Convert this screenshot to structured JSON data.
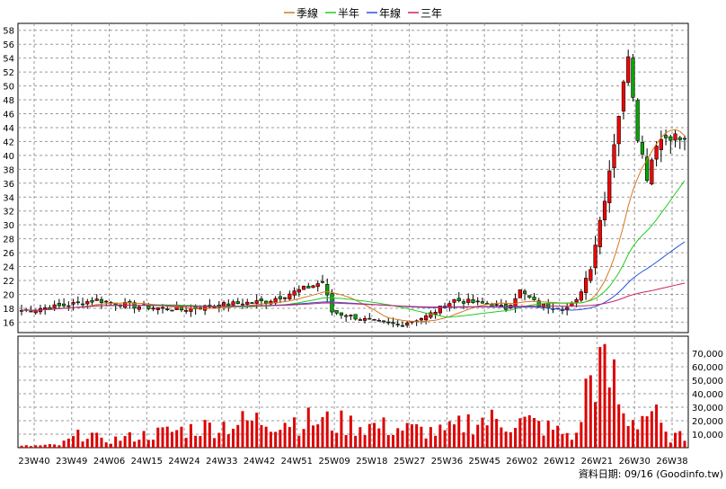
{
  "chart_data": {
    "type": "candlestick",
    "legend": [
      {
        "name": "季線",
        "color": "#d8781e"
      },
      {
        "name": "半年",
        "color": "#22cc22"
      },
      {
        "name": "年線",
        "color": "#2255dd"
      },
      {
        "name": "三年",
        "color": "#cc2266"
      }
    ],
    "price_axis": {
      "min": 14.5,
      "max": 59,
      "ticks": [
        16,
        18,
        20,
        22,
        24,
        26,
        28,
        30,
        32,
        34,
        36,
        38,
        40,
        42,
        44,
        46,
        48,
        50,
        52,
        54,
        56,
        58
      ]
    },
    "volume_axis": {
      "min": 0,
      "max": 80000,
      "ticks": [
        10000,
        20000,
        30000,
        40000,
        50000,
        60000,
        70000
      ],
      "tick_labels": [
        "10,000",
        "20,000",
        "30,000",
        "40,000",
        "50,000",
        "60,000",
        "70,000"
      ]
    },
    "x_labels": [
      "23W40",
      "23W49",
      "24W06",
      "24W15",
      "24W24",
      "24W33",
      "24W42",
      "24W51",
      "25W09",
      "25W18",
      "25W27",
      "25W36",
      "25W45",
      "26W02",
      "26W12",
      "26W21",
      "26W30",
      "26W38"
    ],
    "footer": "資料日期: 09/16  (Goodinfo.tw)",
    "colors": {
      "up": "#ff0000",
      "down": "#00aa00",
      "grid": "#999999"
    },
    "ohlc_keyframes": [
      {
        "week": 0,
        "close": 17.7
      },
      {
        "week": 8,
        "close": 18.3
      },
      {
        "week": 16,
        "close": 19.2
      },
      {
        "week": 24,
        "close": 18.3
      },
      {
        "week": 34,
        "close": 17.8
      },
      {
        "week": 44,
        "close": 18.6
      },
      {
        "week": 52,
        "close": 19.0
      },
      {
        "week": 60,
        "close": 20.8
      },
      {
        "week": 64,
        "close": 21.8
      },
      {
        "week": 66,
        "close": 17.5
      },
      {
        "week": 74,
        "close": 16.2
      },
      {
        "week": 80,
        "close": 15.6
      },
      {
        "week": 86,
        "close": 16.8
      },
      {
        "week": 92,
        "close": 19.2
      },
      {
        "week": 100,
        "close": 18.5
      },
      {
        "week": 103,
        "close": 18.0
      },
      {
        "week": 106,
        "close": 20.5
      },
      {
        "week": 110,
        "close": 18.4
      },
      {
        "week": 116,
        "close": 18.1
      },
      {
        "week": 118,
        "close": 19.0
      },
      {
        "week": 121,
        "close": 24.0
      },
      {
        "week": 124,
        "close": 34.0
      },
      {
        "week": 126,
        "close": 42.0
      },
      {
        "week": 128,
        "close": 50.0
      },
      {
        "week": 129,
        "close": 55.0
      },
      {
        "week": 131,
        "close": 43.0
      },
      {
        "week": 133,
        "close": 37.0
      },
      {
        "week": 135,
        "close": 42.0
      },
      {
        "week": 138,
        "close": 43.0
      },
      {
        "week": 141,
        "close": 42.0
      }
    ],
    "volume_keyframes": [
      {
        "week": 0,
        "value": 1500
      },
      {
        "week": 8,
        "value": 2500
      },
      {
        "week": 14,
        "value": 15000
      },
      {
        "week": 17,
        "value": 6000
      },
      {
        "week": 30,
        "value": 14000
      },
      {
        "week": 50,
        "value": 25000
      },
      {
        "week": 56,
        "value": 26000
      },
      {
        "week": 64,
        "value": 24000
      },
      {
        "week": 90,
        "value": 14000
      },
      {
        "week": 96,
        "value": 26000
      },
      {
        "week": 108,
        "value": 23000
      },
      {
        "week": 118,
        "value": 10000
      },
      {
        "week": 120,
        "value": 52000
      },
      {
        "week": 122,
        "value": 77000
      },
      {
        "week": 124,
        "value": 65000
      },
      {
        "week": 126,
        "value": 60000
      },
      {
        "week": 128,
        "value": 28000
      },
      {
        "week": 131,
        "value": 27000
      },
      {
        "week": 134,
        "value": 35000
      },
      {
        "week": 137,
        "value": 10000
      }
    ]
  }
}
